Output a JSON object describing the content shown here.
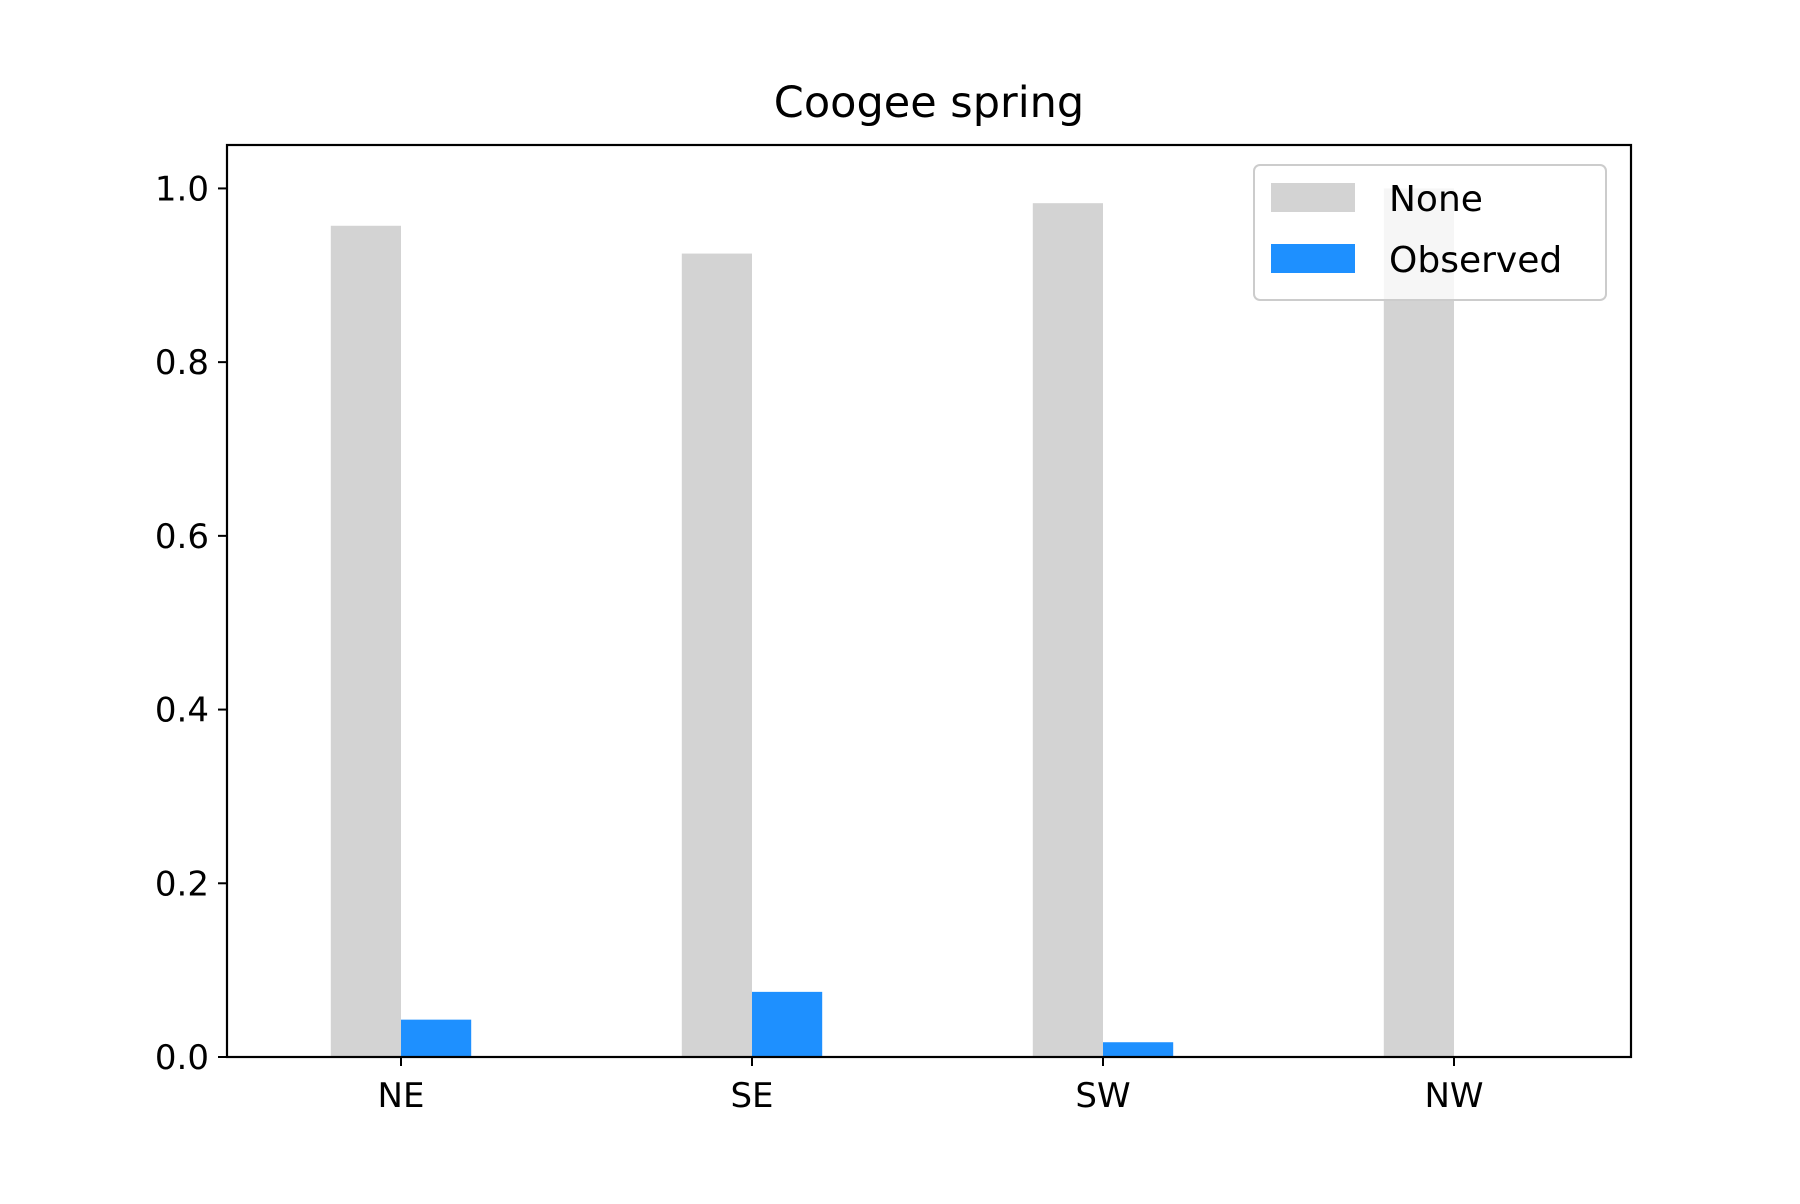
{
  "chart_data": {
    "type": "bar",
    "title": "Coogee spring",
    "xlabel": "",
    "ylabel": "",
    "categories": [
      "NE",
      "SE",
      "SW",
      "NW"
    ],
    "series": [
      {
        "name": "None",
        "color": "#d3d3d3",
        "values": [
          0.957,
          0.925,
          0.983,
          1.0
        ]
      },
      {
        "name": "Observed",
        "color": "#1e90ff",
        "values": [
          0.043,
          0.075,
          0.017,
          0.0
        ]
      }
    ],
    "ylim": [
      0,
      1.05
    ],
    "yticks": [
      "0.0",
      "0.2",
      "0.4",
      "0.6",
      "0.8",
      "1.0"
    ],
    "grid": false,
    "legend_position": "upper right"
  }
}
